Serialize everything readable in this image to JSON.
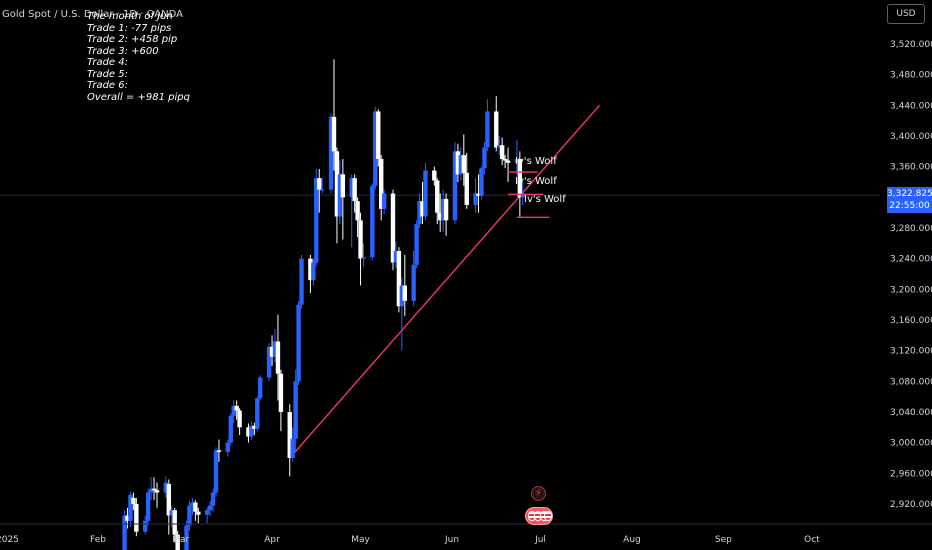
{
  "chart_data": {
    "type": "candlestick",
    "symbol_title": "Gold Spot / U.S. Dollar · 1D · OANDA",
    "currency": "USD",
    "ylim": [
      2880,
      3560
    ],
    "y_ticks": [
      2920,
      2960,
      3000,
      3040,
      3080,
      3120,
      3160,
      3200,
      3240,
      3280,
      3360,
      3400,
      3440,
      3480,
      3520
    ],
    "y_tick_labels": [
      "2,920.000",
      "2,960.000",
      "3,000.000",
      "3,040.000",
      "3,080.000",
      "3,120.000",
      "3,160.000",
      "3,200.000",
      "3,240.000",
      "3,280.000",
      "3,360.000",
      "3,400.000",
      "3,440.000",
      "3,480.000",
      "3,520.000"
    ],
    "x_labels": [
      {
        "label": "2025",
        "date": "2025-01-01"
      },
      {
        "label": "Feb",
        "date": "2025-02-01"
      },
      {
        "label": "Mar",
        "date": "2025-03-01"
      },
      {
        "label": "Apr",
        "date": "2025-04-01"
      },
      {
        "label": "May",
        "date": "2025-05-01"
      },
      {
        "label": "Jun",
        "date": "2025-06-01"
      },
      {
        "label": "Jul",
        "date": "2025-07-01"
      },
      {
        "label": "Aug",
        "date": "2025-08-01"
      },
      {
        "label": "Sep",
        "date": "2025-09-01"
      },
      {
        "label": "Oct",
        "date": "2025-10-01"
      }
    ],
    "current_price": "3,322.825",
    "countdown": "22:55:00",
    "current_price_value": 3322.8,
    "bull_color": "#2962ff",
    "bear_color": "#ffffff",
    "trend_line_color": "#f23668",
    "candles": [
      [
        "2025-02-10",
        2860,
        2905,
        2850,
        2912
      ],
      [
        "2025-02-11",
        2905,
        2898,
        2888,
        2915
      ],
      [
        "2025-02-12",
        2898,
        2932,
        2890,
        2936
      ],
      [
        "2025-02-13",
        2928,
        2920,
        2912,
        2935
      ],
      [
        "2025-02-14",
        2920,
        2884,
        2878,
        2928
      ],
      [
        "2025-02-17",
        2884,
        2898,
        2880,
        2905
      ],
      [
        "2025-02-18",
        2898,
        2935,
        2892,
        2940
      ],
      [
        "2025-02-19",
        2935,
        2940,
        2925,
        2955
      ],
      [
        "2025-02-20",
        2940,
        2938,
        2925,
        2955
      ],
      [
        "2025-02-21",
        2938,
        2935,
        2915,
        2948
      ],
      [
        "2025-02-24",
        2935,
        2948,
        2928,
        2956
      ],
      [
        "2025-02-25",
        2946,
        2905,
        2880,
        2952
      ],
      [
        "2025-02-26",
        2905,
        2912,
        2890,
        2918
      ],
      [
        "2025-02-27",
        2912,
        2880,
        2870,
        2915
      ],
      [
        "2025-02-28",
        2880,
        2860,
        2855,
        2885
      ],
      [
        "2025-03-03",
        2860,
        2892,
        2855,
        2898
      ],
      [
        "2025-03-04",
        2892,
        2918,
        2885,
        2924
      ],
      [
        "2025-03-05",
        2918,
        2922,
        2905,
        2928
      ],
      [
        "2025-03-06",
        2922,
        2910,
        2898,
        2925
      ],
      [
        "2025-03-07",
        2910,
        2906,
        2895,
        2915
      ],
      [
        "2025-03-10",
        2906,
        2912,
        2895,
        2916
      ],
      [
        "2025-03-11",
        2912,
        2918,
        2904,
        2924
      ],
      [
        "2025-03-12",
        2918,
        2935,
        2910,
        2940
      ],
      [
        "2025-03-13",
        2935,
        2990,
        2930,
        2994
      ],
      [
        "2025-03-14",
        2990,
        2988,
        2975,
        3004
      ],
      [
        "2025-03-17",
        2988,
        3000,
        2982,
        3004
      ],
      [
        "2025-03-18",
        3000,
        3035,
        2996,
        3038
      ],
      [
        "2025-03-19",
        3035,
        3048,
        3025,
        3056
      ],
      [
        "2025-03-20",
        3048,
        3042,
        3030,
        3055
      ],
      [
        "2025-03-21",
        3042,
        3020,
        3010,
        3045
      ],
      [
        "2025-03-24",
        3020,
        3008,
        3000,
        3025
      ],
      [
        "2025-03-25",
        3008,
        3022,
        3004,
        3028
      ],
      [
        "2025-03-26",
        3022,
        3018,
        3010,
        3026
      ],
      [
        "2025-03-27",
        3018,
        3058,
        3015,
        3060
      ],
      [
        "2025-03-28",
        3058,
        3085,
        3055,
        3088
      ],
      [
        "2025-03-31",
        3085,
        3125,
        3080,
        3130
      ],
      [
        "2025-04-01",
        3125,
        3112,
        3100,
        3140
      ],
      [
        "2025-04-02",
        3112,
        3132,
        3105,
        3148
      ],
      [
        "2025-04-03",
        3132,
        3090,
        3055,
        3167
      ],
      [
        "2025-04-04",
        3090,
        3040,
        3015,
        3095
      ],
      [
        "2025-04-07",
        3040,
        2980,
        2956,
        3050
      ],
      [
        "2025-04-08",
        2980,
        3005,
        2975,
        3020
      ],
      [
        "2025-04-09",
        3005,
        3080,
        2990,
        3095
      ],
      [
        "2025-04-10",
        3080,
        3180,
        3075,
        3185
      ],
      [
        "2025-04-11",
        3180,
        3240,
        3175,
        3245
      ],
      [
        "2025-04-14",
        3240,
        3212,
        3195,
        3245
      ],
      [
        "2025-04-15",
        3212,
        3235,
        3205,
        3240
      ],
      [
        "2025-04-16",
        3235,
        3345,
        3230,
        3357
      ],
      [
        "2025-04-17",
        3345,
        3330,
        3300,
        3357
      ],
      [
        "2025-04-18",
        3330,
        3330,
        3325,
        3345
      ],
      [
        "2025-04-21",
        3330,
        3425,
        3325,
        3430
      ],
      [
        "2025-04-22",
        3425,
        3380,
        3355,
        3500
      ],
      [
        "2025-04-23",
        3380,
        3295,
        3260,
        3385
      ],
      [
        "2025-04-24",
        3295,
        3350,
        3285,
        3368
      ],
      [
        "2025-04-25",
        3350,
        3320,
        3265,
        3370
      ],
      [
        "2025-04-28",
        3320,
        3345,
        3255,
        3350
      ],
      [
        "2025-04-29",
        3345,
        3315,
        3300,
        3350
      ],
      [
        "2025-04-30",
        3315,
        3290,
        3268,
        3320
      ],
      [
        "2025-05-01",
        3290,
        3240,
        3205,
        3300
      ],
      [
        "2025-05-02",
        3240,
        3242,
        3230,
        3260
      ],
      [
        "2025-05-05",
        3242,
        3335,
        3238,
        3338
      ],
      [
        "2025-05-06",
        3335,
        3432,
        3330,
        3438
      ],
      [
        "2025-05-07",
        3432,
        3370,
        3360,
        3435
      ],
      [
        "2025-05-08",
        3370,
        3305,
        3290,
        3375
      ],
      [
        "2025-05-09",
        3305,
        3325,
        3298,
        3330
      ],
      [
        "2025-05-12",
        3325,
        3235,
        3225,
        3330
      ],
      [
        "2025-05-13",
        3235,
        3250,
        3228,
        3262
      ],
      [
        "2025-05-14",
        3250,
        3178,
        3170,
        3255
      ],
      [
        "2025-05-15",
        3178,
        3205,
        3120,
        3215
      ],
      [
        "2025-05-16",
        3205,
        3185,
        3165,
        3245
      ],
      [
        "2025-05-19",
        3185,
        3232,
        3178,
        3250
      ],
      [
        "2025-05-20",
        3232,
        3285,
        3228,
        3290
      ],
      [
        "2025-05-21",
        3285,
        3315,
        3280,
        3325
      ],
      [
        "2025-05-22",
        3315,
        3295,
        3285,
        3340
      ],
      [
        "2025-05-23",
        3295,
        3355,
        3290,
        3365
      ],
      [
        "2025-05-26",
        3355,
        3342,
        3335,
        3360
      ],
      [
        "2025-05-27",
        3342,
        3300,
        3285,
        3345
      ],
      [
        "2025-05-28",
        3300,
        3290,
        3275,
        3325
      ],
      [
        "2025-05-29",
        3290,
        3318,
        3275,
        3330
      ],
      [
        "2025-05-30",
        3318,
        3290,
        3270,
        3325
      ],
      [
        "2025-06-02",
        3290,
        3380,
        3285,
        3392
      ],
      [
        "2025-06-03",
        3380,
        3350,
        3340,
        3390
      ],
      [
        "2025-06-04",
        3350,
        3375,
        3342,
        3385
      ],
      [
        "2025-06-05",
        3375,
        3352,
        3335,
        3402
      ],
      [
        "2025-06-06",
        3352,
        3310,
        3305,
        3378
      ],
      [
        "2025-06-09",
        3310,
        3325,
        3300,
        3345
      ],
      [
        "2025-06-10",
        3325,
        3322,
        3300,
        3350
      ],
      [
        "2025-06-11",
        3322,
        3358,
        3318,
        3360
      ],
      [
        "2025-06-12",
        3358,
        3385,
        3350,
        3392
      ],
      [
        "2025-06-13",
        3385,
        3432,
        3380,
        3448
      ],
      [
        "2025-06-16",
        3432,
        3385,
        3380,
        3452
      ],
      [
        "2025-06-17",
        3385,
        3388,
        3375,
        3400
      ],
      [
        "2025-06-18",
        3388,
        3370,
        3362,
        3398
      ],
      [
        "2025-06-19",
        3370,
        3368,
        3358,
        3375
      ],
      [
        "2025-06-20",
        3368,
        3365,
        3340,
        3385
      ],
      [
        "2025-06-23",
        3365,
        3370,
        3350,
        3395
      ],
      [
        "2025-06-24",
        3370,
        3320,
        3295,
        3380
      ],
      [
        "2025-06-25",
        3320,
        3325,
        3310,
        3340
      ]
    ],
    "trend_line": {
      "from": {
        "date": "2025-04-07",
        "price": 2980
      },
      "to": {
        "date": "2025-07-21",
        "price": 3440
      }
    },
    "horizontal_levels": [
      {
        "label": "Iv's Wolf",
        "price": 3353,
        "from": "2025-06-20",
        "to": "2025-06-30"
      },
      {
        "label": "Iv's Wolf",
        "price": 3324,
        "from": "2025-06-20",
        "to": "2025-07-02"
      },
      {
        "label": "Iv's Wolf",
        "price": 3294,
        "from": "2025-06-23",
        "to": "2025-07-04"
      }
    ]
  },
  "notes": [
    "The month of Jun",
    "Trade 1: -77 pips",
    "Trade 2: +458 pip",
    "Trade 3: +600",
    "Trade 4:",
    "Trade 5:",
    "Trade 6:",
    "Overall = +981 pipq"
  ],
  "icons": {
    "flash": "flash-icon",
    "events": "us-flag-icon"
  }
}
